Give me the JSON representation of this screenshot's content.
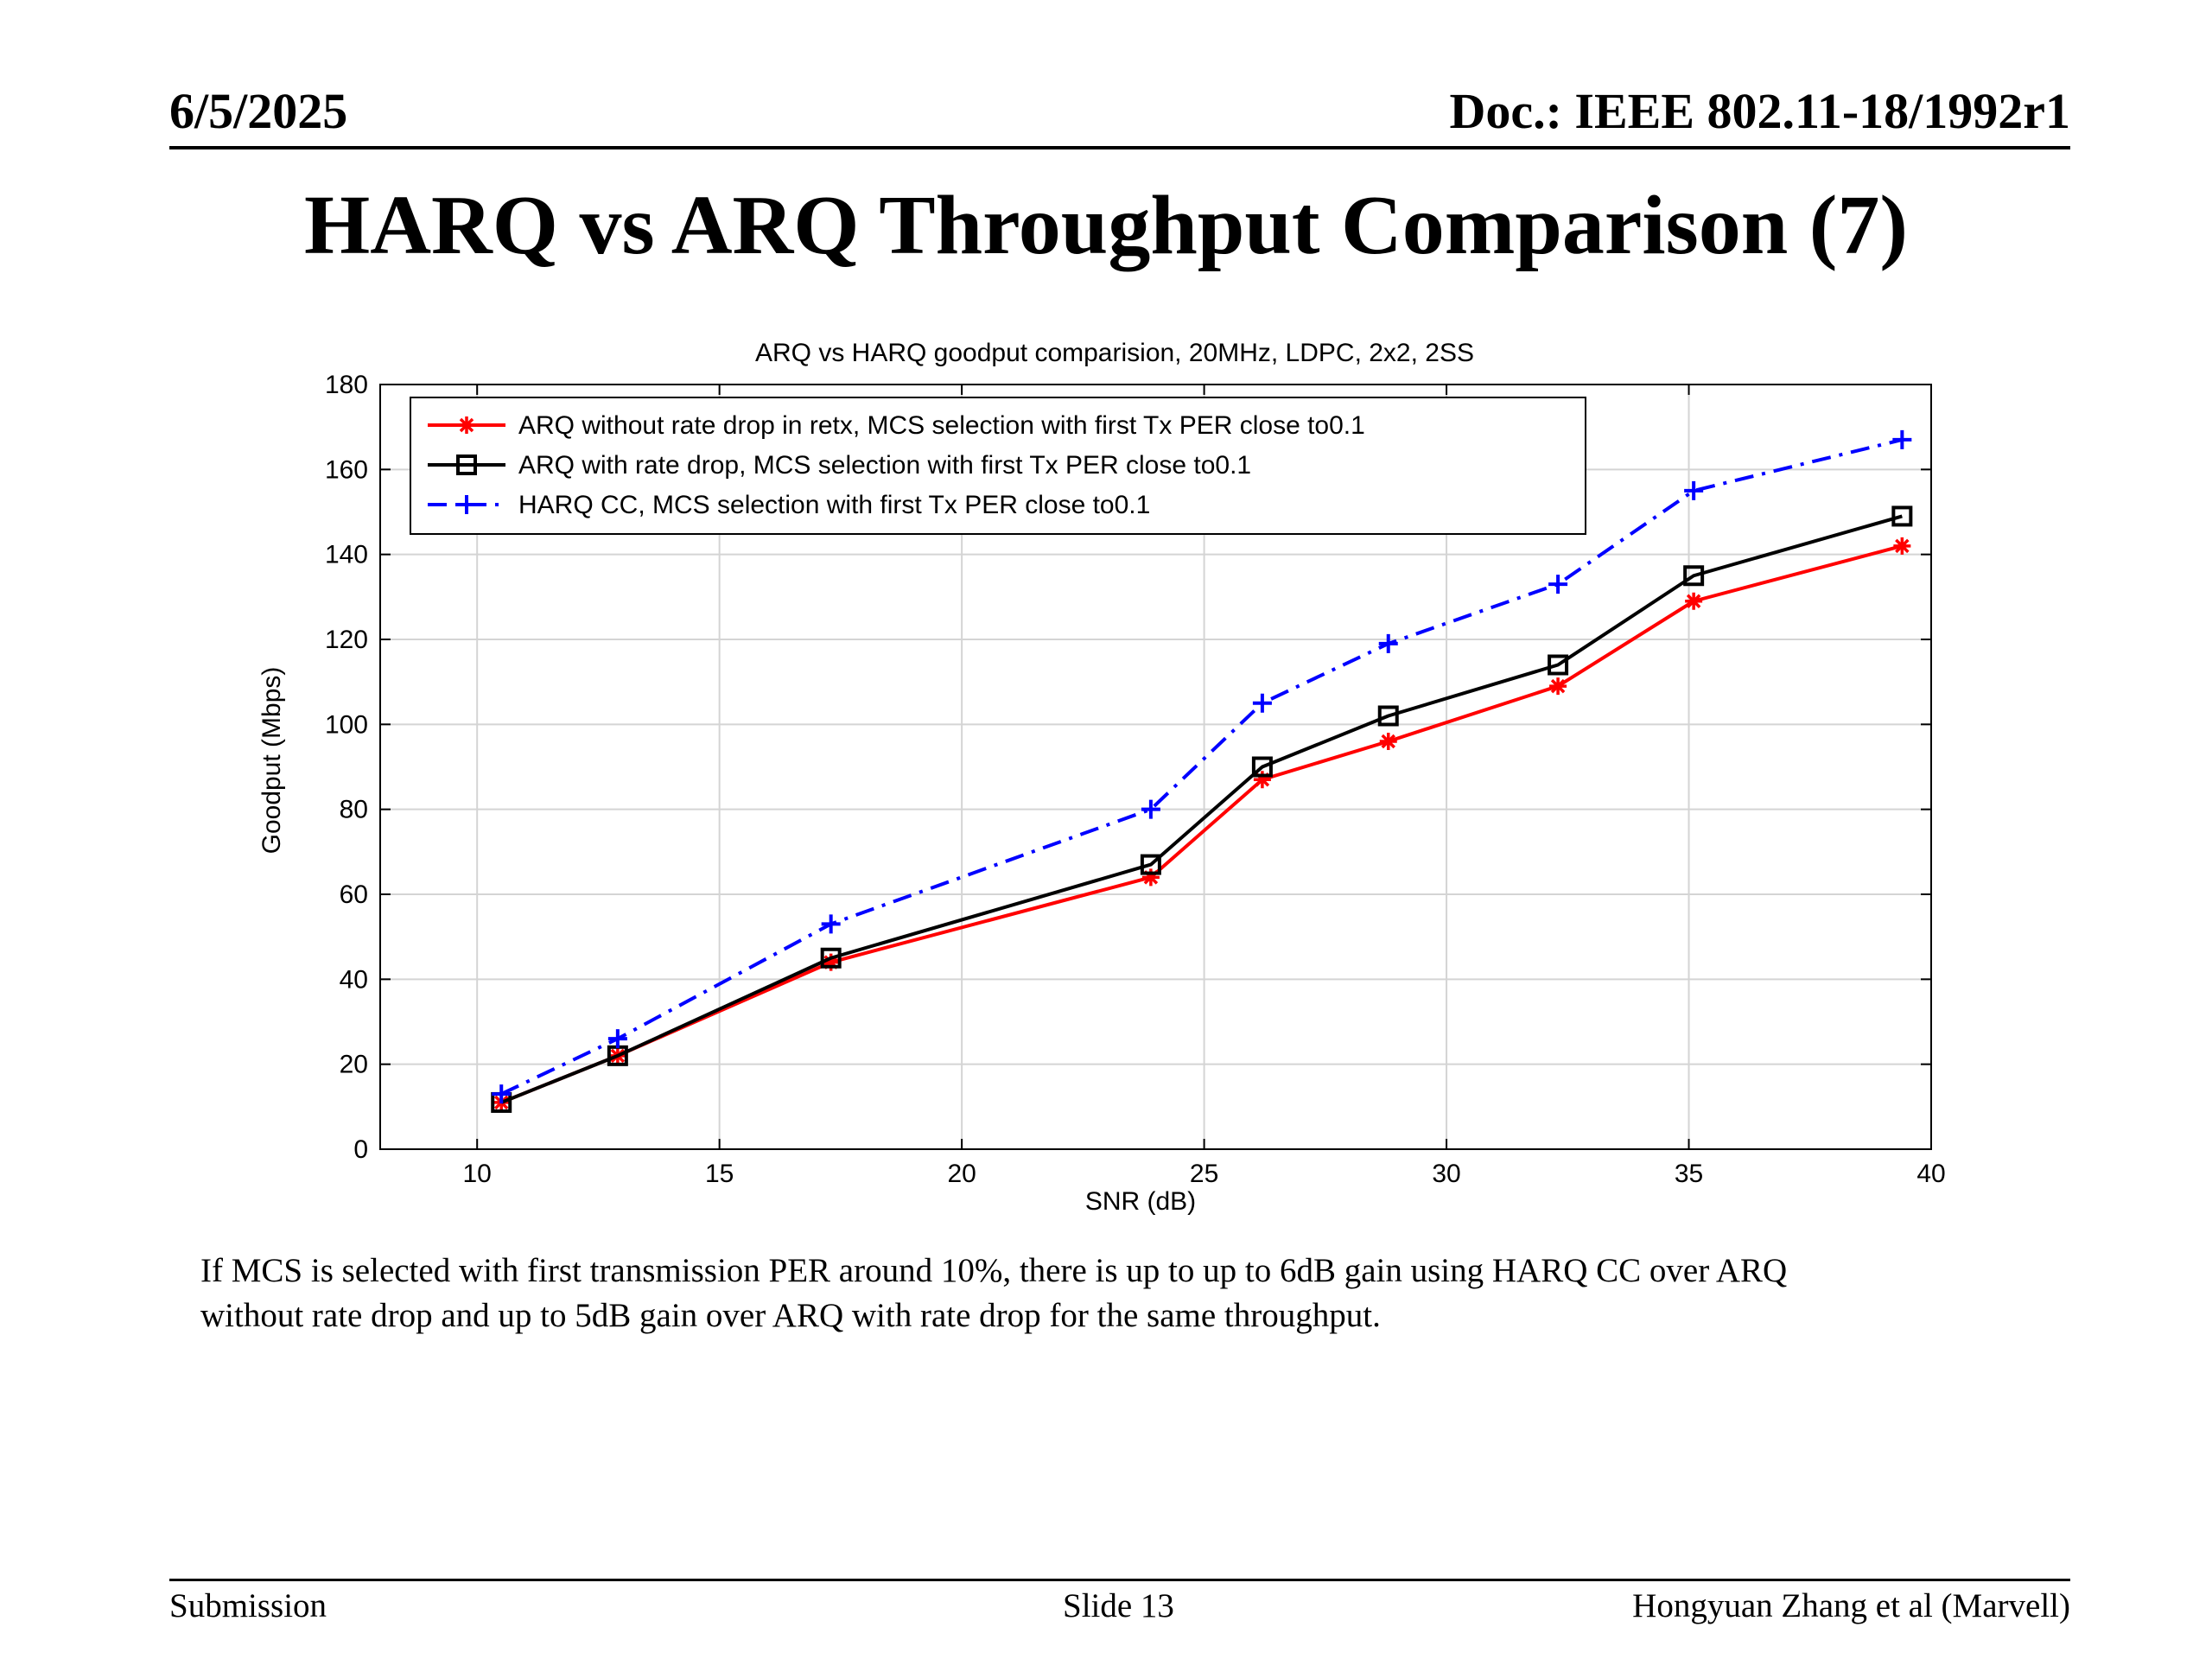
{
  "header": {
    "date": "6/5/2025",
    "doc": "Doc.: IEEE 802.11-18/1992r1"
  },
  "slide": {
    "title": "HARQ vs ARQ Throughput Comparison (7)"
  },
  "caption": {
    "line1": "If MCS is selected with first transmission PER around 10%, there is up to up to 6dB gain using HARQ CC over ARQ",
    "line2": "without rate drop and up to 5dB gain over ARQ with rate drop for the same throughput."
  },
  "footer": {
    "left": "Submission",
    "center": "Slide 13",
    "right": "Hongyuan Zhang et al (Marvell)"
  },
  "chart_data": {
    "type": "line",
    "title": "ARQ vs HARQ goodput comparision, 20MHz, LDPC, 2x2, 2SS",
    "xlabel": "SNR (dB)",
    "ylabel": "Goodput (Mbps)",
    "xlim": [
      8,
      40
    ],
    "ylim": [
      0,
      180
    ],
    "xticks": [
      10,
      15,
      20,
      25,
      30,
      35,
      40
    ],
    "yticks": [
      0,
      20,
      40,
      60,
      80,
      100,
      120,
      140,
      160,
      180
    ],
    "grid": true,
    "legend_position": "top-left",
    "series": [
      {
        "name": "ARQ without rate drop in retx, MCS selection with first Tx PER close to0.1",
        "color": "#ff0000",
        "line_style": "solid",
        "marker": "star",
        "x": [
          10.5,
          12.9,
          17.3,
          23.9,
          26.2,
          28.8,
          32.3,
          35.1,
          39.4
        ],
        "y": [
          11,
          22,
          44,
          64,
          87,
          96,
          109,
          129,
          142
        ]
      },
      {
        "name": "ARQ with rate drop, MCS selection with first Tx PER close to0.1",
        "color": "#000000",
        "line_style": "solid",
        "marker": "square",
        "x": [
          10.5,
          12.9,
          17.3,
          23.9,
          26.2,
          28.8,
          32.3,
          35.1,
          39.4
        ],
        "y": [
          11,
          22,
          45,
          67,
          90,
          102,
          114,
          135,
          149
        ]
      },
      {
        "name": "HARQ CC, MCS selection with first Tx PER close to0.1",
        "color": "#0000ff",
        "line_style": "dashdot",
        "marker": "plus",
        "x": [
          10.5,
          12.9,
          17.3,
          23.9,
          26.2,
          28.8,
          32.3,
          35.1,
          39.4
        ],
        "y": [
          13,
          26,
          53,
          80,
          105,
          119,
          133,
          155,
          167
        ]
      }
    ]
  }
}
